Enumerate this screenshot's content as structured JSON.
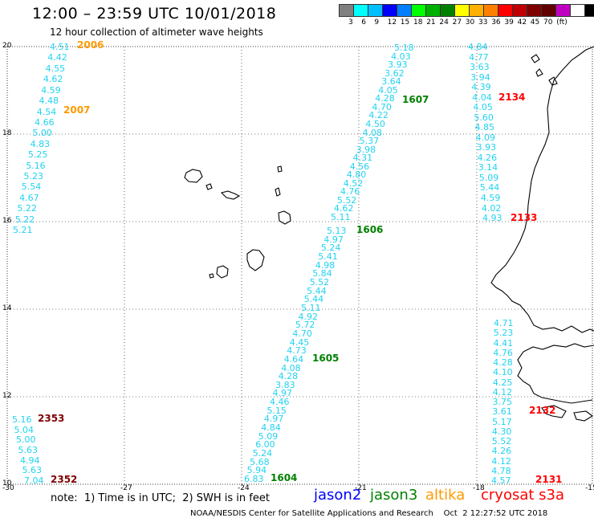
{
  "header": {
    "title": "12:00 – 23:59 UTC 10/01/2018",
    "subtitle": "12 hour collection of altimeter wave heights"
  },
  "colorbar": {
    "colors": [
      "#808080",
      "#00ffff",
      "#00bfff",
      "#0000ff",
      "#007fff",
      "#00ff00",
      "#00b000",
      "#008000",
      "#ffff00",
      "#ffb000",
      "#ff8000",
      "#ff0000",
      "#c00000",
      "#800000",
      "#600000",
      "#c000c0",
      "#ffffff",
      "#000000"
    ],
    "labels": [
      "3",
      "6",
      "9",
      "12",
      "15",
      "18",
      "21",
      "24",
      "27",
      "30",
      "33",
      "36",
      "39",
      "42",
      "45",
      "70",
      "(ft)"
    ]
  },
  "axes": {
    "x_ticks": [
      "-30",
      "-27",
      "-24",
      "-21",
      "-18",
      "-15"
    ],
    "y_ticks": [
      "10",
      "12",
      "14",
      "16",
      "18",
      "20"
    ]
  },
  "tracks": [
    {
      "satellite": "jason3",
      "pass": "1604",
      "values": [
        "6.83",
        "5.94",
        "5.68",
        "5.24",
        "6.00",
        "5.09",
        "4.84",
        "4.97",
        "5.15",
        "4.46",
        "4.97",
        "3.83",
        "4.28",
        "4.08",
        "4.64",
        "4.73",
        "4.45",
        "4.70",
        "5.72",
        "4.92",
        "5.11",
        "5.44",
        "5.44",
        "5.52",
        "5.84",
        "4.98",
        "5.41",
        "5.24",
        "4.97",
        "5.13"
      ]
    },
    {
      "satellite": "jason3",
      "pass": "1605",
      "values": []
    },
    {
      "satellite": "jason3",
      "pass": "1606",
      "values": [
        "5.11",
        "4.62",
        "5.52",
        "4.76",
        "4.52",
        "4.80",
        "4.56",
        "4.31",
        "3.98",
        "5.37",
        "4.08",
        "4.50",
        "4.22",
        "4.70",
        "4.28",
        "4.05",
        "3.64",
        "3.62",
        "3.93",
        "4.03",
        "5.18"
      ]
    },
    {
      "satellite": "jason3",
      "pass": "1607",
      "values": []
    },
    {
      "satellite": "altika",
      "pass": "2006",
      "values": [
        "4.51",
        "4.42",
        "4.55",
        "4.62",
        "4.59",
        "4.48",
        "4.54",
        "4.66",
        "5.00",
        "4.83",
        "5.25",
        "5.16",
        "5.23",
        "5.54",
        "4.67",
        "5.22",
        "5.22",
        "5.21"
      ]
    },
    {
      "satellite": "altika",
      "pass": "2007",
      "values": []
    },
    {
      "satellite": "cryosat s3a",
      "pass": "2134",
      "values": [
        "4.84",
        "4.77",
        "3.63",
        "3.94",
        "4.39",
        "4.04",
        "4.05",
        "5.60",
        "4.85",
        "4.09",
        "3.93",
        "4.26",
        "3.14",
        "5.09",
        "5.44",
        "4.59",
        "4.02",
        "4.93"
      ]
    },
    {
      "satellite": "cryosat s3a",
      "pass": "2133",
      "values": []
    },
    {
      "satellite": "cryosat s3a",
      "pass": "2132",
      "values": [
        "4.71",
        "5.23",
        "4.41",
        "4.76",
        "4.28",
        "4.10",
        "4.25",
        "4.12",
        "3.75",
        "3.61",
        "5.17",
        "4.30",
        "5.52",
        "4.26",
        "4.12",
        "4.78",
        "4.57"
      ]
    },
    {
      "satellite": "cryosat s3a",
      "pass": "2131",
      "values": []
    },
    {
      "satellite": "cryosat s3a",
      "pass": "2353",
      "values": [
        "5.16",
        "5.04",
        "5.00",
        "5.63",
        "4.94",
        "5.63",
        "7.04"
      ]
    },
    {
      "satellite": "cryosat s3a",
      "pass": "2352",
      "values": []
    }
  ],
  "legend": {
    "note": "note:  1) Time is in UTC;  2) SWH is in feet",
    "items": [
      {
        "label": "jason2",
        "color": "#0000ff"
      },
      {
        "label": "jason3",
        "color": "#008000"
      },
      {
        "label": "altika",
        "color": "#ff9900"
      },
      {
        "label": "cryosat s3a",
        "color": "#ff0000"
      }
    ]
  },
  "footer": "NOAA/NESDIS Center for Satellite Applications and Research    Oct  2 12:27:52 UTC 2018",
  "colors": {
    "swh": "#22d3f0",
    "jason3": "#008000",
    "altika": "#ff9900",
    "cryosat": "#ff0000",
    "cryosat_dark": "#800000"
  }
}
